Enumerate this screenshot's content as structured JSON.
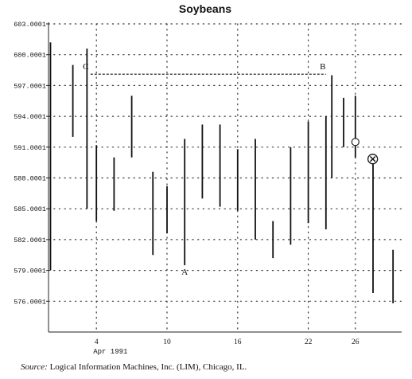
{
  "chart_data": {
    "type": "bar",
    "title": "Soybeans",
    "xlabel": "",
    "ylabel": "",
    "ylim": [
      573,
      603
    ],
    "xlim": [
      0,
      29.3
    ],
    "y_ticks": [
      576.0001,
      579.0001,
      582.0001,
      585.0001,
      588.0001,
      591.0001,
      594.0001,
      597.0001,
      600.0001,
      603.0001
    ],
    "y_tick_labels": [
      "576.0001",
      "579.0001",
      "582.0001",
      "585.0001",
      "588.0001",
      "591.0001",
      "594.0001",
      "597.0001",
      "600.0001",
      "603.0001"
    ],
    "x_ticks": [
      4,
      10,
      16,
      22,
      26
    ],
    "x_tick_labels": [
      "4",
      "10",
      "16",
      "22",
      "26"
    ],
    "x_sublabel": "Apr 1991",
    "grid": true,
    "bars": [
      {
        "x": 0.1,
        "high": 601.2,
        "low": 579.0
      },
      {
        "x": 2.0,
        "high": 599.0,
        "low": 592.0
      },
      {
        "x": 3.2,
        "high": 600.6,
        "low": 585.0
      },
      {
        "x": 4.0,
        "high": 591.2,
        "low": 583.8
      },
      {
        "x": 5.5,
        "high": 590.0,
        "low": 584.8
      },
      {
        "x": 7.0,
        "high": 596.0,
        "low": 590.0
      },
      {
        "x": 8.8,
        "high": 588.6,
        "low": 580.5
      },
      {
        "x": 10.0,
        "high": 587.2,
        "low": 582.6
      },
      {
        "x": 11.5,
        "high": 591.8,
        "low": 579.5
      },
      {
        "x": 13.0,
        "high": 593.2,
        "low": 586.0
      },
      {
        "x": 14.5,
        "high": 593.2,
        "low": 585.2
      },
      {
        "x": 16.0,
        "high": 590.8,
        "low": 584.8
      },
      {
        "x": 17.5,
        "high": 591.8,
        "low": 582.0
      },
      {
        "x": 19.0,
        "high": 583.8,
        "low": 580.2
      },
      {
        "x": 20.5,
        "high": 591.0,
        "low": 581.5
      },
      {
        "x": 22.0,
        "high": 593.5,
        "low": 583.6
      },
      {
        "x": 23.5,
        "high": 594.0,
        "low": 583.0
      },
      {
        "x": 24.0,
        "high": 598.0,
        "low": 588.0
      },
      {
        "x": 25.0,
        "high": 595.8,
        "low": 591.0
      },
      {
        "x": 26.0,
        "high": 596.0,
        "low": 590.0
      },
      {
        "x": 27.5,
        "high": 589.4,
        "low": 576.8
      },
      {
        "x": 29.2,
        "high": 581.0,
        "low": 575.8
      }
    ],
    "annotations": {
      "line_start": {
        "x": 3.5,
        "y": 598.1
      },
      "line_end": {
        "x": 23.5,
        "y": 598.1
      },
      "label_C": "C",
      "label_B": "B",
      "label_A": "A",
      "point_A": {
        "x": 11.5,
        "y": 579.5
      },
      "circle_point": {
        "x": 26.0,
        "y": 591.5
      },
      "x_circle_point": {
        "x": 26.8,
        "y": 590.0
      }
    }
  },
  "footer": {
    "source_label": "Source:",
    "source_text": "Logical Information Machines, Inc. (LIM), Chicago, IL."
  }
}
